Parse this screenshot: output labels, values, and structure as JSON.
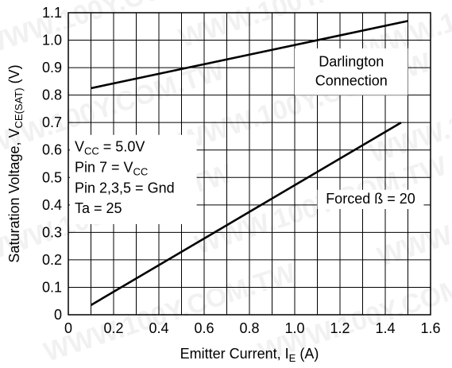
{
  "chart_data": {
    "type": "line",
    "xlabel": {
      "main": "Emitter Current, I",
      "sub": "E",
      "tail": " (A)"
    },
    "ylabel": {
      "main": "Saturation Voltage, V",
      "sub": "CE(SAT)",
      "tail": " (V)"
    },
    "xlim": [
      0,
      1.6
    ],
    "ylim": [
      0,
      1.1
    ],
    "xticks": [
      "0",
      "0.2",
      "0.4",
      "0.6",
      "0.8",
      "1.0",
      "1.2",
      "1.4",
      "1.6"
    ],
    "yticks": [
      "0",
      "0.1",
      "0.2",
      "0.3",
      "0.4",
      "0.5",
      "0.6",
      "0.7",
      "0.8",
      "0.9",
      "1.0",
      "1.1"
    ],
    "grid": true,
    "series": [
      {
        "name": "Darlington Connection",
        "x": [
          0.1,
          1.5
        ],
        "y": [
          0.825,
          1.07
        ]
      },
      {
        "name": "Forced ß = 20",
        "x": [
          0.1,
          1.47
        ],
        "y": [
          0.035,
          0.7
        ]
      }
    ],
    "annotations": {
      "darlington_line1": "Darlington",
      "darlington_line2": "Connection",
      "forced_beta": "Forced ß  = 20",
      "conditions": [
        {
          "main": "V",
          "sub": "CC",
          "tail": " = 5.0V"
        },
        {
          "main": "Pin 7 = V",
          "sub": "CC",
          "tail": ""
        },
        {
          "main": "Pin 2,3,5 = Gnd",
          "sub": "",
          "tail": ""
        },
        {
          "main": "Ta = 25",
          "sub": "",
          "tail": ""
        }
      ]
    },
    "watermark": "WWW.100Y.COM.TW",
    "colors": {
      "line": "#000000",
      "grid": "#000000",
      "background": "#ffffff"
    }
  }
}
